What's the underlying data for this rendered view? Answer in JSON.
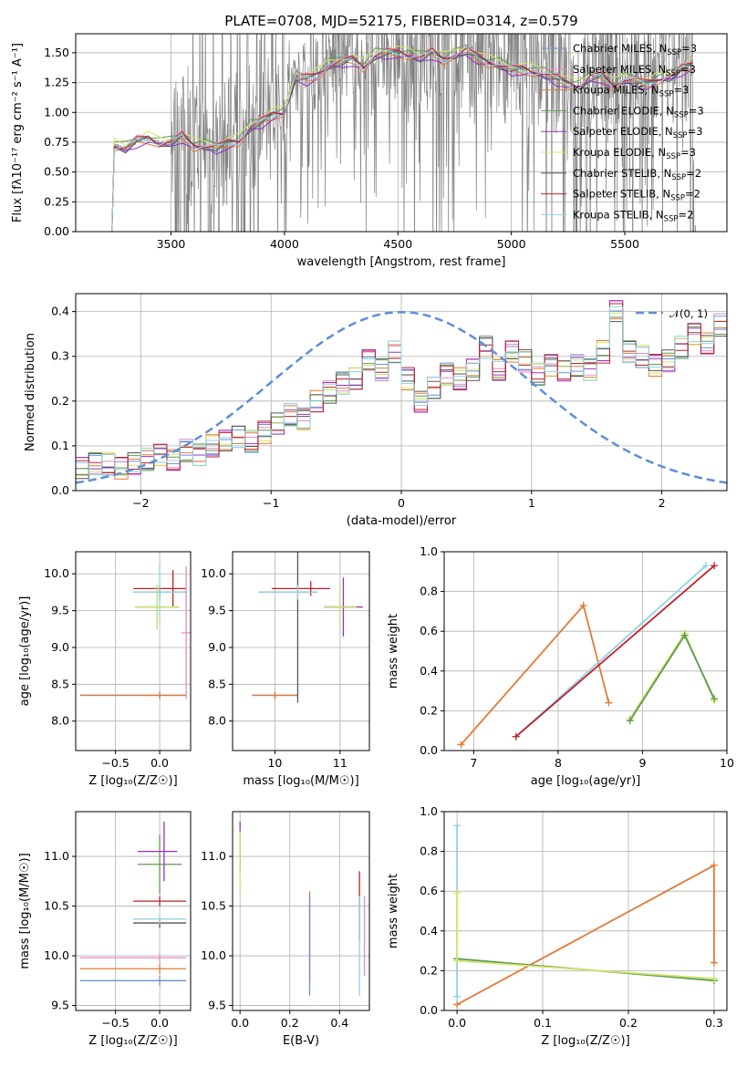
{
  "figure_title": "PLATE=0708, MJD=52175, FIBERID=0314, z=0.579",
  "colors": {
    "Chabrier MILES": "#6a8fd8",
    "Salpeter MILES": "#e78bc6",
    "Kroupa MILES": "#e07b39",
    "Chabrier ELODIE": "#5b9c4e",
    "Salpeter ELODIE": "#9b30c7",
    "Kroupa ELODIE": "#d4e36b",
    "Chabrier STELIB": "#555555",
    "Salpeter STELIB": "#c0212a",
    "Kroupa STELIB": "#8fd3df",
    "spectrum": "#808080",
    "gaussian": "#5f8ed8"
  },
  "chart_data": [
    {
      "type": "line",
      "title": "PLATE=0708, MJD=52175, FIBERID=0314, z=0.579",
      "xlabel": "wavelength [Angstrom, rest frame]",
      "ylabel": "Flux [fλ10^-17 erg cm^-2 s^-1 A^-1]",
      "xlim": [
        3080,
        5950
      ],
      "ylim": [
        0,
        1.66
      ],
      "xticks": [
        3500,
        4000,
        4500,
        5000,
        5500
      ],
      "yticks": [
        0.0,
        0.25,
        0.5,
        0.75,
        1.0,
        1.25,
        1.5
      ],
      "grid": true,
      "legend_position": "right",
      "legend": [
        "Chabrier MILES, N_SSP=3",
        "Salpeter MILES, N_SSP=3",
        "Kroupa MILES, N_SSP=3",
        "Chabrier ELODIE, N_SSP=3",
        "Salpeter ELODIE, N_SSP=3",
        "Kroupa ELODIE, N_SSP=3",
        "Chabrier STELIB, N_SSP=2",
        "Salpeter STELIB, N_SSP=2",
        "Kroupa STELIB, N_SSP=2"
      ],
      "model_curve": {
        "x": [
          3200,
          3240,
          3250,
          3300,
          3350,
          3400,
          3450,
          3500,
          3550,
          3600,
          3650,
          3700,
          3750,
          3800,
          3850,
          3900,
          3950,
          4000,
          4050,
          4100,
          4150,
          4200,
          4250,
          4300,
          4350,
          4400,
          4450,
          4500,
          4550,
          4600,
          4650,
          4700,
          4750,
          4800,
          4850,
          4900,
          4950,
          5000,
          5050,
          5100,
          5150,
          5200,
          5250,
          5300,
          5350,
          5400,
          5450,
          5500,
          5550,
          5600,
          5650,
          5700,
          5750,
          5800
        ],
        "y": [
          0.0,
          0.0,
          0.72,
          0.7,
          0.76,
          0.78,
          0.74,
          0.75,
          0.8,
          0.72,
          0.72,
          0.7,
          0.74,
          0.76,
          0.88,
          0.92,
          0.98,
          1.0,
          1.3,
          1.28,
          1.32,
          1.4,
          1.42,
          1.44,
          1.38,
          1.48,
          1.5,
          1.5,
          1.48,
          1.46,
          1.5,
          1.44,
          1.48,
          1.52,
          1.46,
          1.42,
          1.4,
          1.36,
          1.36,
          1.34,
          1.32,
          1.28,
          1.24,
          1.22,
          1.3,
          1.3,
          1.22,
          1.28,
          1.26,
          1.24,
          1.28,
          1.3,
          1.36,
          1.4
        ]
      },
      "observed_spectrum": "noisy grey spectrum (many lines truncated at plot edges)"
    },
    {
      "type": "line",
      "xlabel": "(data-model)/error",
      "ylabel": "Normed distribution",
      "xlim": [
        -2.5,
        2.5
      ],
      "ylim": [
        0,
        0.44
      ],
      "xticks": [
        -2,
        -1,
        0,
        1,
        2
      ],
      "yticks": [
        0.0,
        0.1,
        0.2,
        0.3,
        0.4
      ],
      "grid": true,
      "legend": [
        "𝒩(0, 1)"
      ],
      "legend_position": "top-right",
      "bin_width": 0.1,
      "histogram_base": [
        0.05,
        0.06,
        0.06,
        0.05,
        0.06,
        0.07,
        0.08,
        0.07,
        0.09,
        0.08,
        0.1,
        0.11,
        0.12,
        0.11,
        0.13,
        0.15,
        0.17,
        0.16,
        0.2,
        0.22,
        0.24,
        0.25,
        0.29,
        0.27,
        0.31,
        0.25,
        0.2,
        0.23,
        0.26,
        0.25,
        0.27,
        0.32,
        0.27,
        0.31,
        0.29,
        0.26,
        0.28,
        0.27,
        0.28,
        0.27,
        0.31,
        0.4,
        0.31,
        0.3,
        0.28,
        0.29,
        0.32,
        0.35,
        0.33,
        0.37,
        0.38,
        0.3,
        0.28,
        0.24,
        0.26,
        0.22,
        0.23,
        0.22,
        0.24,
        0.2,
        0.19,
        0.21,
        0.19,
        0.17,
        0.16,
        0.15,
        0.14,
        0.13,
        0.15,
        0.13,
        0.12,
        0.13,
        0.12,
        0.13,
        0.11,
        0.1,
        0.09,
        0.08,
        0.07,
        0.06,
        0.05,
        0.06,
        0.05,
        0.06,
        0.05,
        0.05,
        0.05,
        0.04,
        0.05,
        0.04,
        0.04,
        0.03,
        0.04,
        0.03,
        0.04,
        0.03,
        0.03,
        0.03,
        0.03,
        0.03
      ],
      "gaussian": "standard normal pdf"
    },
    {
      "type": "scatter",
      "xlabel": "Z [log10(Z/Z☉)]",
      "ylabel": "age  [log10(age/yr)]",
      "xlim": [
        -0.95,
        0.35
      ],
      "ylim": [
        7.6,
        10.3
      ],
      "xticks": [
        -0.5,
        0.0
      ],
      "yticks": [
        8.0,
        8.5,
        9.0,
        9.5,
        10.0
      ],
      "grid": true,
      "points": [
        {
          "model": "Chabrier MILES",
          "x": 0.0,
          "y": 8.35,
          "xerr": [
            0.9,
            0.3
          ],
          "yerr": 0.05
        },
        {
          "model": "Kroupa MILES",
          "x": 0.0,
          "y": 8.35,
          "xerr": [
            0.9,
            0.3
          ],
          "yerr": 0.05
        },
        {
          "model": "Salpeter STELIB",
          "x": 0.15,
          "y": 9.8,
          "xerr": [
            0.45,
            0.15
          ],
          "yerr": 0.25
        },
        {
          "model": "Chabrier STELIB",
          "x": 0.0,
          "y": 9.75,
          "xerr": [
            0.3,
            0.3
          ],
          "yerr": 0.1
        },
        {
          "model": "Kroupa STELIB",
          "x": 0.0,
          "y": 9.75,
          "xerr": [
            0.3,
            0.3
          ],
          "yerr": 0.4
        },
        {
          "model": "Chabrier ELODIE",
          "x": -0.03,
          "y": 9.55,
          "xerr": [
            0.25,
            0.25
          ],
          "yerr": 0.3
        },
        {
          "model": "Kroupa ELODIE",
          "x": -0.03,
          "y": 9.55,
          "xerr": [
            0.25,
            0.25
          ],
          "yerr": 0.3
        },
        {
          "model": "Salpeter MILES",
          "x": 0.3,
          "y": 9.2,
          "xerr": [
            0.05,
            0.05
          ],
          "yerr": 0.9
        }
      ]
    },
    {
      "type": "scatter",
      "xlabel": "mass [log10(M/M☉)]",
      "ylabel": "",
      "xlim": [
        9.35,
        11.45
      ],
      "ylim": [
        7.6,
        10.3
      ],
      "xticks": [
        10,
        11
      ],
      "yticks": [
        8.0,
        8.5,
        9.0,
        9.5,
        10.0
      ],
      "grid": true,
      "points": [
        {
          "model": "Chabrier MILES",
          "x": 10.0,
          "y": 8.35,
          "xerr": [
            0.35,
            0.35
          ],
          "yerr": 0.05
        },
        {
          "model": "Kroupa MILES",
          "x": 10.0,
          "y": 8.35,
          "xerr": [
            0.35,
            0.35
          ],
          "yerr": 0.05
        },
        {
          "model": "Salpeter STELIB",
          "x": 10.55,
          "y": 9.8,
          "xerr": [
            0.6,
            0.3
          ],
          "yerr": 0.1
        },
        {
          "model": "Chabrier STELIB",
          "x": 10.35,
          "y": 9.75,
          "xerr": [
            0.6,
            0.3
          ],
          "yerr": 1.5
        },
        {
          "model": "Kroupa STELIB",
          "x": 10.35,
          "y": 9.75,
          "xerr": [
            0.6,
            0.3
          ],
          "yerr": 0.1
        },
        {
          "model": "Chabrier ELODIE",
          "x": 11.0,
          "y": 9.55,
          "xerr": [
            0.25,
            0.25
          ],
          "yerr": 0.3
        },
        {
          "model": "Salpeter ELODIE",
          "x": 11.05,
          "y": 9.55,
          "xerr": [
            0.3,
            0.3
          ],
          "yerr": 0.4
        },
        {
          "model": "Kroupa ELODIE",
          "x": 11.0,
          "y": 9.55,
          "xerr": [
            0.25,
            0.25
          ],
          "yerr": 0.3
        }
      ]
    },
    {
      "type": "line",
      "xlabel": "age  [log10(age/yr)]",
      "ylabel": "mass weight",
      "xlim": [
        6.65,
        10.0
      ],
      "ylim": [
        0,
        1.0
      ],
      "xticks": [
        7,
        8,
        9,
        10
      ],
      "yticks": [
        0.0,
        0.2,
        0.4,
        0.6,
        0.8,
        1.0
      ],
      "grid": true,
      "series": [
        {
          "model": "Kroupa MILES",
          "x": [
            6.85,
            8.3,
            8.6
          ],
          "y": [
            0.03,
            0.73,
            0.24
          ]
        },
        {
          "model": "Kroupa STELIB",
          "x": [
            7.5,
            9.75
          ],
          "y": [
            0.07,
            0.93
          ]
        },
        {
          "model": "Salpeter STELIB",
          "x": [
            7.5,
            9.85
          ],
          "y": [
            0.07,
            0.93
          ]
        },
        {
          "model": "Kroupa ELODIE",
          "x": [
            8.85,
            9.5,
            9.85
          ],
          "y": [
            0.16,
            0.59,
            0.25
          ]
        },
        {
          "model": "Chabrier ELODIE",
          "x": [
            8.85,
            9.5,
            9.85
          ],
          "y": [
            0.15,
            0.58,
            0.26
          ]
        }
      ]
    },
    {
      "type": "scatter",
      "xlabel": "Z [log10(Z/Z☉)]",
      "ylabel": "mass [log10(M/M☉)]",
      "xlim": [
        -0.95,
        0.35
      ],
      "ylim": [
        9.45,
        11.45
      ],
      "xticks": [
        -0.5,
        0.0
      ],
      "yticks": [
        9.5,
        10.0,
        10.5,
        11.0
      ],
      "grid": true,
      "points": [
        {
          "model": "Chabrier MILES",
          "x": 0.0,
          "y": 9.75,
          "xerr": [
            0.9,
            0.3
          ],
          "yerr": 0.05
        },
        {
          "model": "Kroupa MILES",
          "x": 0.0,
          "y": 9.87,
          "xerr": [
            0.9,
            0.3
          ],
          "yerr": 0.05
        },
        {
          "model": "Salpeter MILES",
          "x": 0.0,
          "y": 9.98,
          "xerr": [
            0.9,
            0.3
          ],
          "yerr": 0.05
        },
        {
          "model": "Chabrier STELIB",
          "x": 0.0,
          "y": 10.33,
          "xerr": [
            0.3,
            0.3
          ],
          "yerr": 0.05
        },
        {
          "model": "Kroupa STELIB",
          "x": 0.0,
          "y": 10.37,
          "xerr": [
            0.3,
            0.3
          ],
          "yerr": 0.05
        },
        {
          "model": "Salpeter STELIB",
          "x": 0.0,
          "y": 10.55,
          "xerr": [
            0.3,
            0.3
          ],
          "yerr": 0.05
        },
        {
          "model": "Chabrier ELODIE",
          "x": 0.0,
          "y": 10.92,
          "xerr": [
            0.25,
            0.25
          ],
          "yerr": 0.3
        },
        {
          "model": "Salpeter ELODIE",
          "x": 0.05,
          "y": 11.05,
          "xerr": [
            0.3,
            0.15
          ],
          "yerr": 0.3
        }
      ]
    },
    {
      "type": "scatter",
      "xlabel": "E(B-V)",
      "ylabel": "",
      "xlim": [
        -0.03,
        0.52
      ],
      "ylim": [
        9.45,
        11.45
      ],
      "xticks": [
        0.0,
        0.2,
        0.4
      ],
      "yticks": [
        9.5,
        10.0,
        10.5,
        11.0
      ],
      "grid": true,
      "points": [
        {
          "model": "Salpeter ELODIE",
          "x": 0.0,
          "y": 11.1,
          "yerr": 0.25
        },
        {
          "model": "Kroupa ELODIE",
          "x": 0.0,
          "y": 10.95,
          "yerr": 0.3
        },
        {
          "model": "Kroupa MILES",
          "x": 0.28,
          "y": 10.2,
          "yerr": 0.45
        },
        {
          "model": "Chabrier MILES",
          "x": 0.28,
          "y": 10.1,
          "yerr": 0.5
        },
        {
          "model": "Salpeter STELIB",
          "x": 0.48,
          "y": 10.5,
          "yerr": 0.35
        },
        {
          "model": "Kroupa STELIB",
          "x": 0.48,
          "y": 10.1,
          "yerr": 0.5
        },
        {
          "model": "Salpeter MILES",
          "x": 0.5,
          "y": 10.2,
          "yerr": 0.4
        }
      ]
    },
    {
      "type": "line",
      "xlabel": "Z [log10(Z/Z☉)]",
      "ylabel": "mass weight",
      "xlim": [
        -0.015,
        0.315
      ],
      "ylim": [
        0,
        1.0
      ],
      "xticks": [
        0.0,
        0.1,
        0.2,
        0.3
      ],
      "yticks": [
        0.0,
        0.2,
        0.4,
        0.6,
        0.8,
        1.0
      ],
      "grid": true,
      "series": [
        {
          "model": "Kroupa STELIB",
          "x": [
            0.0,
            0.0,
            0.0
          ],
          "y": [
            0.07,
            0.93,
            0.07
          ]
        },
        {
          "model": "Kroupa MILES",
          "x": [
            0.0,
            0.3,
            0.3
          ],
          "y": [
            0.03,
            0.73,
            0.24
          ]
        },
        {
          "model": "Chabrier ELODIE",
          "x": [
            0.0,
            0.3
          ],
          "y": [
            0.26,
            0.15
          ]
        },
        {
          "model": "Kroupa ELODIE",
          "x": [
            0.0,
            0.3
          ],
          "y": [
            0.25,
            0.16
          ]
        },
        {
          "model": "Kroupa ELODIE",
          "x": [
            0.0,
            0.0
          ],
          "y": [
            0.59,
            0.25
          ]
        }
      ]
    }
  ]
}
